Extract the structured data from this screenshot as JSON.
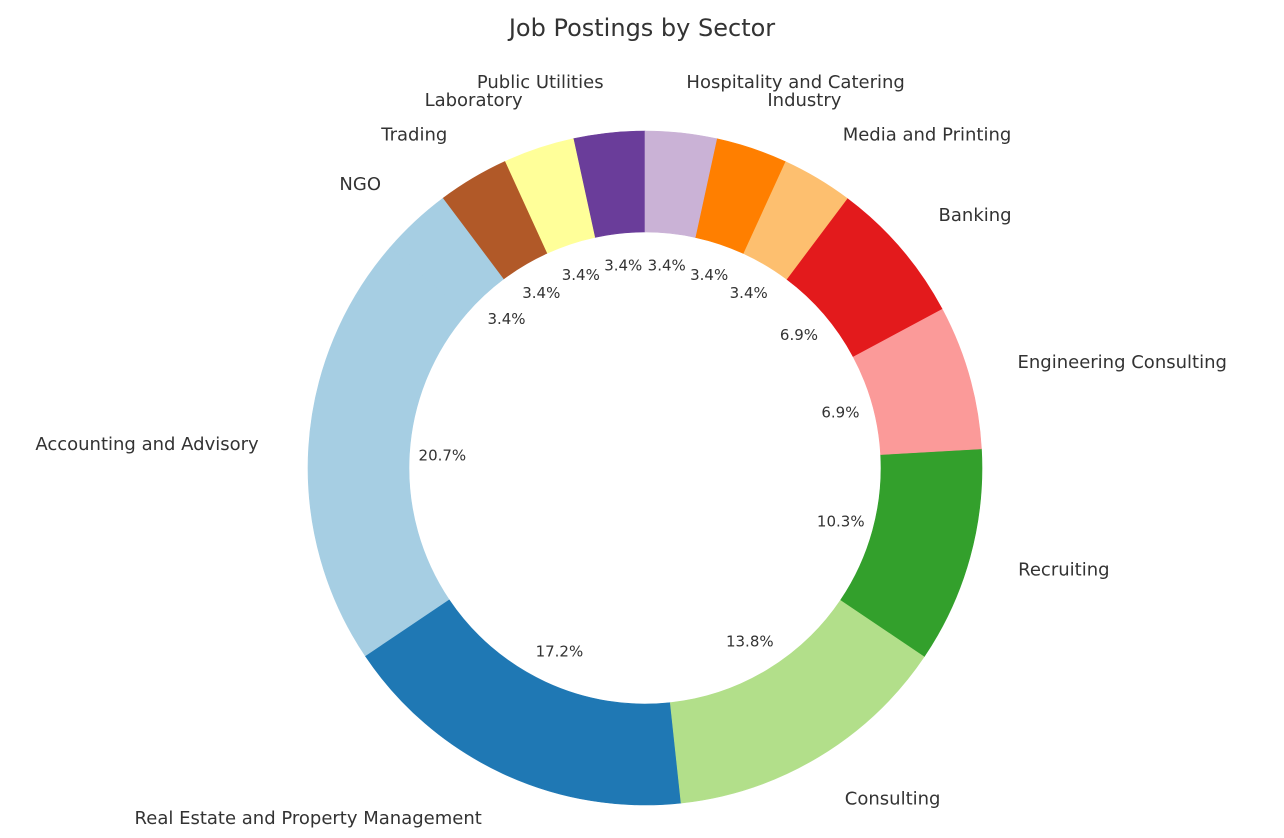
{
  "chart_data": {
    "type": "pie",
    "title": "Job Postings by Sector",
    "donut": true,
    "start": "top",
    "direction": "counterclockwise",
    "categories": [
      "Public Utilities",
      "Laboratory",
      "Trading",
      "NGO",
      "Accounting and Advisory",
      "Real Estate and Property Management",
      "Consulting",
      "Recruiting",
      "Engineering Consulting",
      "Banking",
      "Media and Printing",
      "Industry",
      "Hospitality and Catering"
    ],
    "values": [
      3.4,
      3.4,
      3.4,
      3.4,
      20.7,
      17.2,
      13.8,
      10.3,
      6.9,
      6.9,
      3.4,
      3.4,
      3.4
    ],
    "value_labels": [
      "3.4%",
      "3.4%",
      "3.4%",
      "3.4%",
      "20.7%",
      "17.2%",
      "13.8%",
      "10.3%",
      "6.9%",
      "6.9%",
      "3.4%",
      "3.4%",
      "3.4%"
    ],
    "colors": [
      "#6a3d9a",
      "#ffff99",
      "#b15928",
      "#a6cee3",
      "#a6cee3",
      "#1f78b4",
      "#b2df8a",
      "#33a02c",
      "#fb9a99",
      "#e31a1c",
      "#fdbf6f",
      "#ff7f00",
      "#cab2d6"
    ]
  }
}
